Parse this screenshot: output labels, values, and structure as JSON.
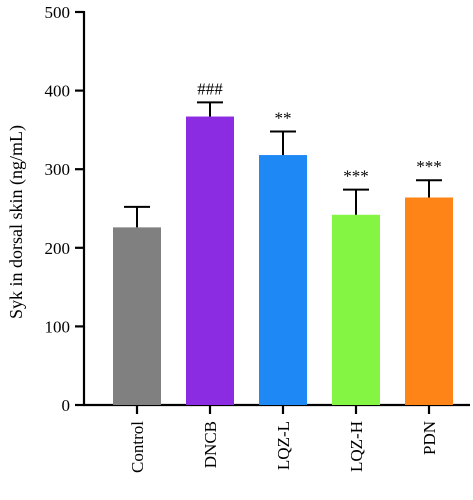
{
  "chart_data": {
    "type": "bar",
    "categories": [
      "Control",
      "DNCB",
      "LQZ-L",
      "LQZ-H",
      "PDN"
    ],
    "values": [
      226,
      367,
      318,
      242,
      264
    ],
    "errors": [
      26,
      18,
      30,
      32,
      22
    ],
    "significance": [
      "",
      "###",
      "**",
      "***",
      "***"
    ],
    "colors": [
      "#808080",
      "#8B2BE2",
      "#1E88F5",
      "#84F542",
      "#FF8417"
    ],
    "ylabel": "Syk in dorsal skin (ng/mL)",
    "xlabel": "",
    "ylim": [
      0,
      500
    ],
    "yticks": [
      0,
      100,
      200,
      300,
      400,
      500
    ],
    "grid": false,
    "legend": "none"
  }
}
